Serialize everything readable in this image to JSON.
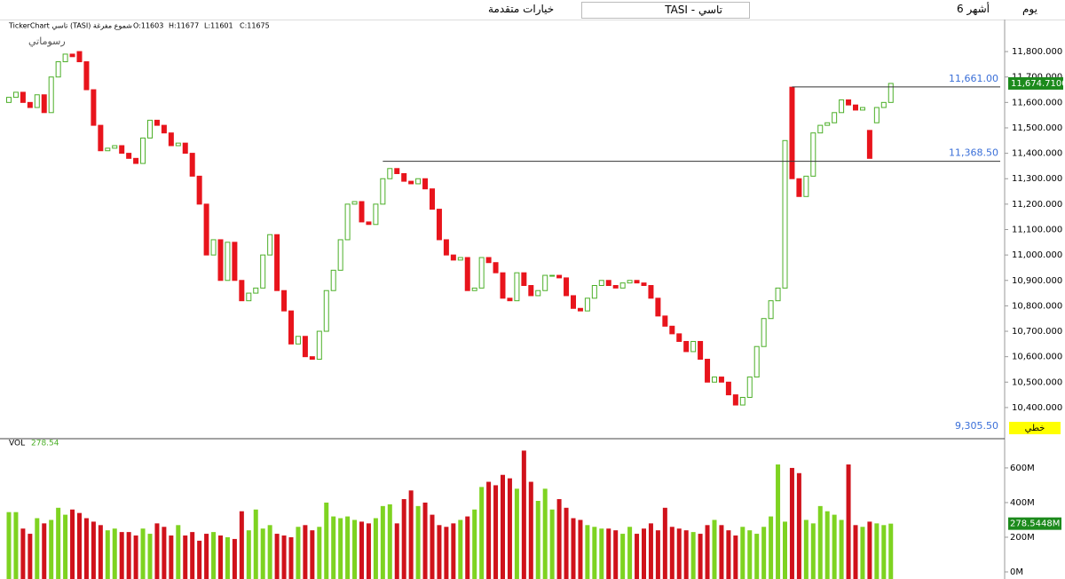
{
  "toolbar": {
    "period": "يوم",
    "range": "6 أشهر",
    "symbol": "TASI - تاسي",
    "advanced": "خيارات متقدمة"
  },
  "chart_data": [
    {
      "type": "candlestick",
      "title": "TickerChart تاسي (TASI) شموع مفرغة",
      "ohlc": [
        "O:11603",
        "H:11677",
        "L:11601",
        "C:11675"
      ],
      "drawings": "رسوماتي",
      "style": "خطي",
      "bottom_label": "9,305.50",
      "up_color": "#4caf28",
      "down_color": "#e8141c",
      "open": [
        11600,
        11620,
        11640,
        11600,
        11580,
        11630,
        11560,
        11700,
        11760,
        11790,
        11800,
        11760,
        11650,
        11510,
        11410,
        11420,
        11430,
        11400,
        11380,
        11360,
        11460,
        11530,
        11510,
        11480,
        11430,
        11440,
        11400,
        11310,
        11200,
        11000,
        11060,
        10900,
        11050,
        10900,
        10820,
        10850,
        10870,
        11000,
        11080,
        10860,
        10780,
        10650,
        10680,
        10600,
        10590,
        10700,
        10860,
        10940,
        11060,
        11200,
        11210,
        11130,
        11120,
        11200,
        11300,
        11340,
        11320,
        11290,
        11280,
        11300,
        11260,
        11180,
        11060,
        11000,
        10980,
        10990,
        10860,
        10870,
        10990,
        10970,
        10930,
        10830,
        10820,
        10930,
        10880,
        10840,
        10860,
        10920,
        10920,
        10910,
        10840,
        10790,
        10780,
        10830,
        10880,
        10900,
        10880,
        10870,
        10890,
        10900,
        10890,
        10880,
        10830,
        10760,
        10720,
        10690,
        10660,
        10620,
        10660,
        10590,
        10500,
        10520,
        10500,
        10450,
        10410,
        10440,
        10520,
        10640,
        10750,
        10820,
        10870,
        11660,
        11300,
        11230,
        11310,
        11480,
        11510,
        11520,
        11560,
        11610,
        11590,
        11570,
        11490,
        11520,
        11580,
        11600
      ],
      "close": [
        11620,
        11640,
        11600,
        11580,
        11630,
        11560,
        11700,
        11760,
        11790,
        11780,
        11760,
        11650,
        11510,
        11410,
        11420,
        11430,
        11400,
        11380,
        11360,
        11460,
        11530,
        11510,
        11480,
        11430,
        11440,
        11400,
        11310,
        11200,
        11000,
        11060,
        10900,
        11050,
        10900,
        10820,
        10850,
        10870,
        11000,
        11080,
        10860,
        10780,
        10650,
        10680,
        10600,
        10590,
        10700,
        10860,
        10940,
        11060,
        11200,
        11210,
        11130,
        11120,
        11200,
        11300,
        11340,
        11320,
        11290,
        11280,
        11300,
        11260,
        11180,
        11060,
        11000,
        10980,
        10990,
        10860,
        10870,
        10990,
        10970,
        10930,
        10830,
        10820,
        10930,
        10880,
        10840,
        10860,
        10920,
        10920,
        10910,
        10840,
        10790,
        10780,
        10830,
        10880,
        10900,
        10880,
        10870,
        10890,
        10900,
        10890,
        10880,
        10830,
        10760,
        10720,
        10690,
        10660,
        10620,
        10660,
        10590,
        10500,
        10520,
        10500,
        10450,
        10410,
        10440,
        10520,
        10640,
        10750,
        10820,
        10870,
        11450,
        11300,
        11230,
        11310,
        11480,
        11510,
        11520,
        11560,
        11610,
        11590,
        11570,
        11580,
        11380,
        11580,
        11600,
        11674.71
      ],
      "ylim": [
        10281,
        11926
      ],
      "yticks": [
        {
          "value": 10400,
          "label": "10,400.000"
        },
        {
          "value": 10500,
          "label": "10,500.000"
        },
        {
          "value": 10600,
          "label": "10,600.000"
        },
        {
          "value": 10700,
          "label": "10,700.000"
        },
        {
          "value": 10800,
          "label": "10,800.000"
        },
        {
          "value": 10900,
          "label": "10,900.000"
        },
        {
          "value": 11000,
          "label": "11,000.000"
        },
        {
          "value": 11100,
          "label": "11,100.000"
        },
        {
          "value": 11200,
          "label": "11,200.000"
        },
        {
          "value": 11300,
          "label": "11,300.000"
        },
        {
          "value": 11400,
          "label": "11,400.000"
        },
        {
          "value": 11500,
          "label": "11,500.000"
        },
        {
          "value": 11600,
          "label": "11,600.000"
        },
        {
          "value": 11700,
          "label": "11,700.000"
        },
        {
          "value": 11800,
          "label": "11,800.000"
        }
      ],
      "hlines": [
        {
          "value": 11661,
          "label": "11,661.00",
          "start": 111
        },
        {
          "value": 11368.5,
          "label": "11,368.50",
          "start": 53
        }
      ],
      "last": {
        "value": 11674.71,
        "label": "11,674.7100"
      }
    },
    {
      "type": "bar",
      "title": "VOL",
      "current": "278.54",
      "ylim": [
        0,
        738
      ],
      "yticks": [
        {
          "value": 0,
          "label": "0M"
        },
        {
          "value": 200,
          "label": "200M"
        },
        {
          "value": 400,
          "label": "400M"
        },
        {
          "value": 600,
          "label": "600M"
        }
      ],
      "values": [
        345,
        345,
        250,
        220,
        310,
        280,
        300,
        370,
        330,
        360,
        340,
        310,
        290,
        270,
        240,
        250,
        230,
        230,
        210,
        250,
        220,
        280,
        260,
        210,
        270,
        210,
        230,
        180,
        220,
        230,
        210,
        200,
        190,
        350,
        240,
        360,
        250,
        270,
        220,
        210,
        200,
        260,
        270,
        240,
        260,
        400,
        320,
        310,
        320,
        300,
        290,
        280,
        310,
        380,
        390,
        280,
        420,
        470,
        380,
        400,
        330,
        270,
        260,
        280,
        300,
        320,
        360,
        490,
        520,
        500,
        560,
        540,
        480,
        700,
        520,
        410,
        480,
        360,
        420,
        370,
        310,
        300,
        270,
        260,
        250,
        250,
        240,
        220,
        260,
        220,
        250,
        280,
        240,
        370,
        260,
        250,
        240,
        230,
        220,
        270,
        300,
        270,
        240,
        210,
        260,
        240,
        220,
        260,
        320,
        620,
        290,
        600,
        570,
        300,
        280,
        380,
        350,
        330,
        300,
        620,
        270,
        260,
        290,
        280,
        270,
        278.5448
      ],
      "last": {
        "value": 278.5448,
        "label": "278.5448M"
      }
    }
  ]
}
